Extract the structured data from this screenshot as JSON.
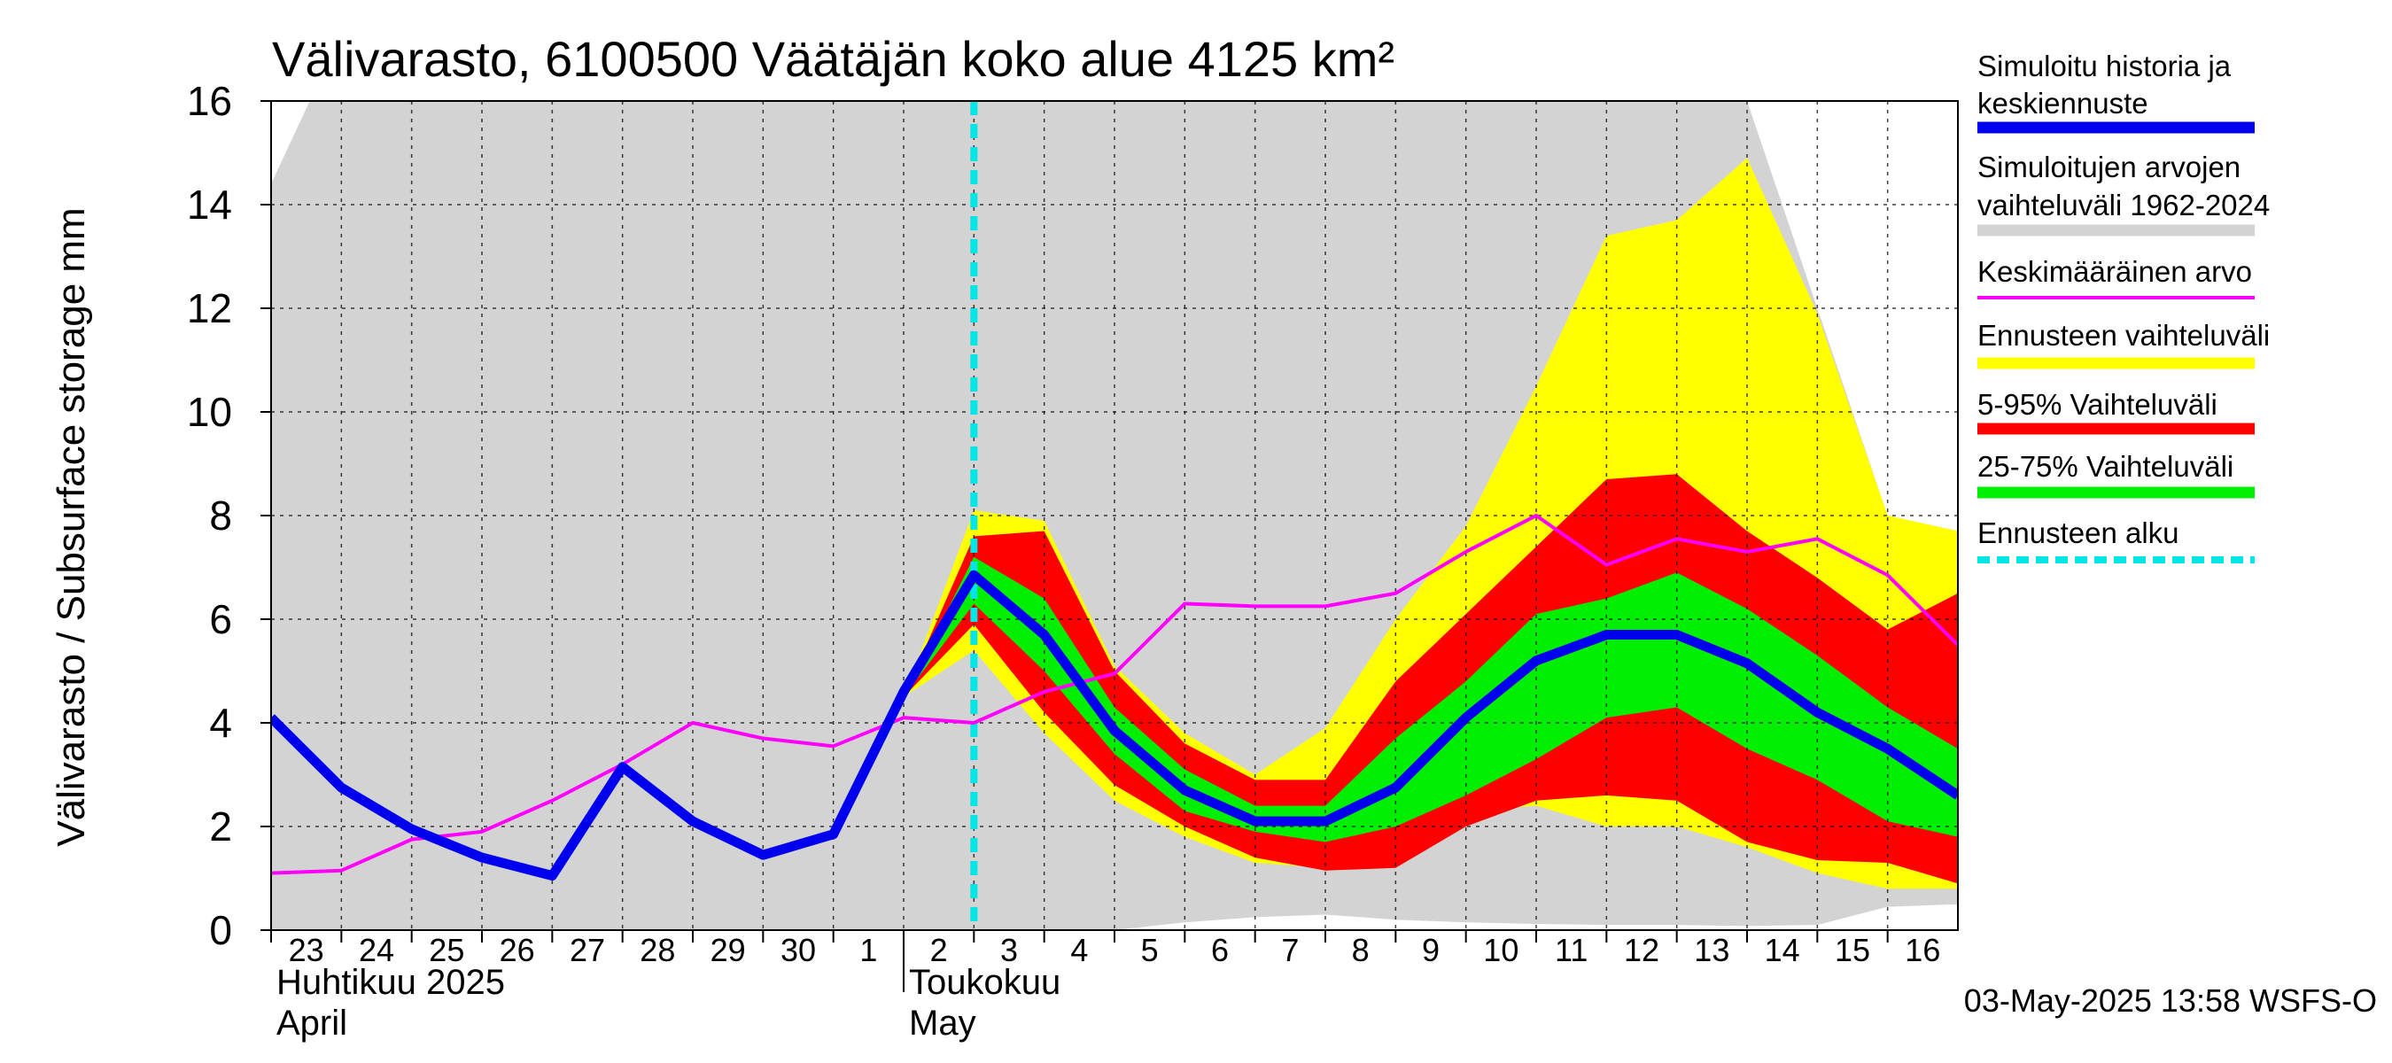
{
  "chart_data": {
    "type": "area",
    "title": "Välivarasto, 6100500 Väätäjän koko alue 4125 km²",
    "ylabel": "Välivarasto / Subsurface storage  mm",
    "ylim": [
      0,
      16
    ],
    "yticks": [
      0,
      2,
      4,
      6,
      8,
      10,
      12,
      14,
      16
    ],
    "grid": true,
    "xlim": [
      0,
      24
    ],
    "x_tick_labels": [
      "23",
      "24",
      "25",
      "26",
      "27",
      "28",
      "29",
      "30",
      "1",
      "2",
      "3",
      "4",
      "5",
      "6",
      "7",
      "8",
      "9",
      "10",
      "11",
      "12",
      "13",
      "14",
      "15",
      "16"
    ],
    "month_labels": [
      {
        "line1": "Huhtikuu  2025",
        "line2": "April",
        "start": 0
      },
      {
        "line1": "Toukokuu",
        "line2": "May",
        "start": 9
      }
    ],
    "forecast_start_x": 10,
    "series": [
      {
        "name": "hist_range",
        "style": "band",
        "color": "#d3d3d3",
        "x": [
          0,
          0.55,
          21,
          23,
          24
        ],
        "upper": [
          14.4,
          16,
          16,
          8.0,
          7.7
        ],
        "lower": [
          0,
          0,
          0,
          0,
          0
        ]
      },
      {
        "name": "hist_range_lower",
        "style": "band",
        "color": "#ffffff",
        "x": [
          12,
          13,
          14,
          15,
          16,
          17,
          18,
          19,
          20,
          21,
          22,
          23,
          24
        ],
        "upper": [
          0.0,
          0.15,
          0.25,
          0.3,
          0.2,
          0.15,
          0.12,
          0.1,
          0.1,
          0.08,
          0.1,
          0.45,
          0.5
        ],
        "lower": [
          0,
          0,
          0,
          0,
          0,
          0,
          0,
          0,
          0,
          0,
          0,
          0,
          0
        ]
      },
      {
        "name": "Ennusteen vaihteluväli",
        "style": "band",
        "color": "#ffff00",
        "x": [
          9,
          10,
          11,
          12,
          13,
          14,
          15,
          16,
          17,
          18,
          19,
          20,
          21,
          22,
          23,
          24
        ],
        "upper": [
          4.5,
          8.1,
          7.9,
          5.1,
          3.8,
          3.0,
          3.9,
          6.0,
          7.8,
          10.5,
          13.4,
          13.7,
          14.9,
          11.9,
          8.0,
          7.7
        ],
        "lower": [
          4.5,
          5.4,
          3.8,
          2.5,
          1.8,
          1.3,
          1.2,
          1.3,
          2.3,
          2.4,
          2.0,
          2.0,
          1.6,
          1.1,
          0.8,
          0.8
        ]
      },
      {
        "name": "5-95% Vaihteluväli",
        "style": "band",
        "color": "#ff0000",
        "x": [
          9,
          10,
          11,
          12,
          13,
          14,
          15,
          16,
          17,
          18,
          19,
          20,
          21,
          22,
          23,
          24
        ],
        "upper": [
          4.5,
          7.6,
          7.7,
          5.0,
          3.6,
          2.9,
          2.9,
          4.8,
          6.1,
          7.4,
          8.7,
          8.8,
          7.7,
          6.8,
          5.8,
          6.5
        ],
        "lower": [
          4.5,
          5.9,
          4.2,
          2.8,
          2.0,
          1.4,
          1.15,
          1.2,
          2.0,
          2.5,
          2.6,
          2.5,
          1.7,
          1.35,
          1.3,
          0.9
        ]
      },
      {
        "name": "25-75% Vaihteluväli",
        "style": "band",
        "color": "#00ee00",
        "x": [
          9,
          10,
          11,
          12,
          13,
          14,
          15,
          16,
          17,
          18,
          19,
          20,
          21,
          22,
          23,
          24
        ],
        "upper": [
          4.5,
          7.2,
          6.4,
          4.3,
          3.1,
          2.4,
          2.4,
          3.7,
          4.8,
          6.1,
          6.4,
          6.9,
          6.2,
          5.3,
          4.3,
          3.5
        ],
        "lower": [
          4.5,
          6.3,
          5.0,
          3.4,
          2.3,
          1.9,
          1.7,
          2.0,
          2.6,
          3.3,
          4.1,
          4.3,
          3.5,
          2.9,
          2.1,
          1.8
        ]
      },
      {
        "name": "Keskimääräinen arvo",
        "style": "line",
        "color": "#ff00ff",
        "width": 4,
        "x": [
          0,
          1,
          2,
          3,
          4,
          5,
          6,
          7,
          8,
          9,
          10,
          11,
          12,
          13,
          14,
          15,
          16,
          17,
          18,
          19,
          20,
          21,
          22,
          23,
          24
        ],
        "values": [
          1.1,
          1.15,
          1.75,
          1.9,
          2.5,
          3.2,
          4.0,
          3.7,
          3.55,
          4.1,
          4.0,
          4.6,
          4.95,
          6.3,
          6.25,
          6.25,
          6.5,
          7.3,
          8.0,
          7.05,
          7.55,
          7.3,
          7.55,
          6.85,
          5.5
        ]
      },
      {
        "name": "Simuloitu historia ja keskiennuste",
        "style": "line",
        "color": "#0000ee",
        "width": 11,
        "x": [
          0,
          1,
          2,
          3,
          4,
          5,
          6,
          7,
          8,
          9,
          10,
          11,
          12,
          13,
          14,
          15,
          16,
          17,
          18,
          19,
          20,
          21,
          22,
          23,
          24
        ],
        "values": [
          4.1,
          2.75,
          1.95,
          1.4,
          1.05,
          3.15,
          2.1,
          1.45,
          1.85,
          4.6,
          6.85,
          5.7,
          3.85,
          2.7,
          2.1,
          2.1,
          2.75,
          4.1,
          5.2,
          5.7,
          5.7,
          5.15,
          4.2,
          3.5,
          2.6
        ]
      }
    ],
    "legend": {
      "placement": "right",
      "entries": [
        {
          "label1": "Simuloitu historia ja",
          "label2": "keskiennuste",
          "color": "#0000ee",
          "kind": "thick"
        },
        {
          "label1": "Simuloitujen arvojen",
          "label2": "vaihteluväli 1962-2024",
          "color": "#d3d3d3",
          "kind": "thick"
        },
        {
          "label1": "Keskimääräinen arvo",
          "label2": "",
          "color": "#ff00ff",
          "kind": "thin"
        },
        {
          "label1": "Ennusteen vaihteluväli",
          "label2": "",
          "color": "#ffff00",
          "kind": "thick"
        },
        {
          "label1": "5-95% Vaihteluväli",
          "label2": "",
          "color": "#ff0000",
          "kind": "thick"
        },
        {
          "label1": "25-75% Vaihteluväli",
          "label2": "",
          "color": "#00ee00",
          "kind": "thick"
        },
        {
          "label1": "Ennusteen alku",
          "label2": "",
          "color": "#00e5e5",
          "kind": "dashed"
        }
      ]
    },
    "footer": "03-May-2025 13:58 WSFS-O"
  }
}
